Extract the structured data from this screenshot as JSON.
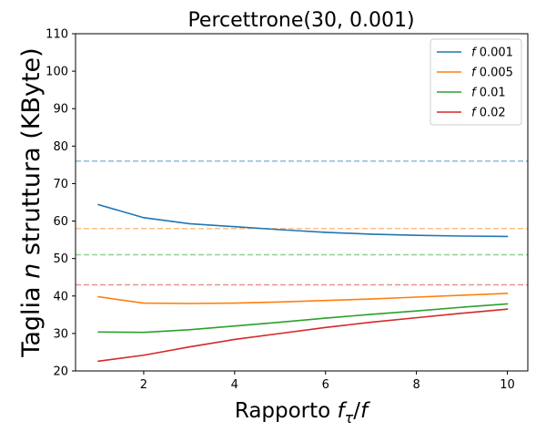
{
  "chart_data": {
    "type": "line",
    "title": "Percettrone(30, 0.001)",
    "xlabel": "Rapporto f_τ/f",
    "ylabel": "Taglia n struttura (KByte)",
    "xlim": [
      0.5,
      10.45
    ],
    "ylim": [
      20,
      110
    ],
    "x": [
      1,
      2,
      3,
      4,
      5,
      6,
      7,
      8,
      9,
      10
    ],
    "xticks": [
      2,
      4,
      6,
      8,
      10
    ],
    "yticks": [
      20,
      30,
      40,
      50,
      60,
      70,
      80,
      90,
      100,
      110
    ],
    "grid": false,
    "legend_position": "top-right",
    "series": [
      {
        "name": "f 0.001",
        "color": "#1f77b4",
        "values": [
          64.4,
          60.9,
          59.3,
          58.5,
          57.7,
          57.0,
          56.5,
          56.2,
          56.0,
          55.9
        ]
      },
      {
        "name": "f 0.005",
        "color": "#ff7f0e",
        "values": [
          39.8,
          38.1,
          38.0,
          38.1,
          38.4,
          38.8,
          39.2,
          39.7,
          40.2,
          40.7
        ]
      },
      {
        "name": "f 0.01",
        "color": "#2ca02c",
        "values": [
          30.4,
          30.3,
          31.0,
          32.0,
          33.0,
          34.1,
          35.1,
          36.0,
          37.0,
          37.9
        ]
      },
      {
        "name": "f 0.02",
        "color": "#d62728",
        "values": [
          22.6,
          24.2,
          26.4,
          28.4,
          30.0,
          31.6,
          33.0,
          34.2,
          35.4,
          36.5
        ]
      }
    ],
    "reference_lines": [
      {
        "y": 76,
        "color": "#1f77b4"
      },
      {
        "y": 58,
        "color": "#ff7f0e"
      },
      {
        "y": 51,
        "color": "#2ca02c"
      },
      {
        "y": 43,
        "color": "#d62728"
      }
    ]
  }
}
